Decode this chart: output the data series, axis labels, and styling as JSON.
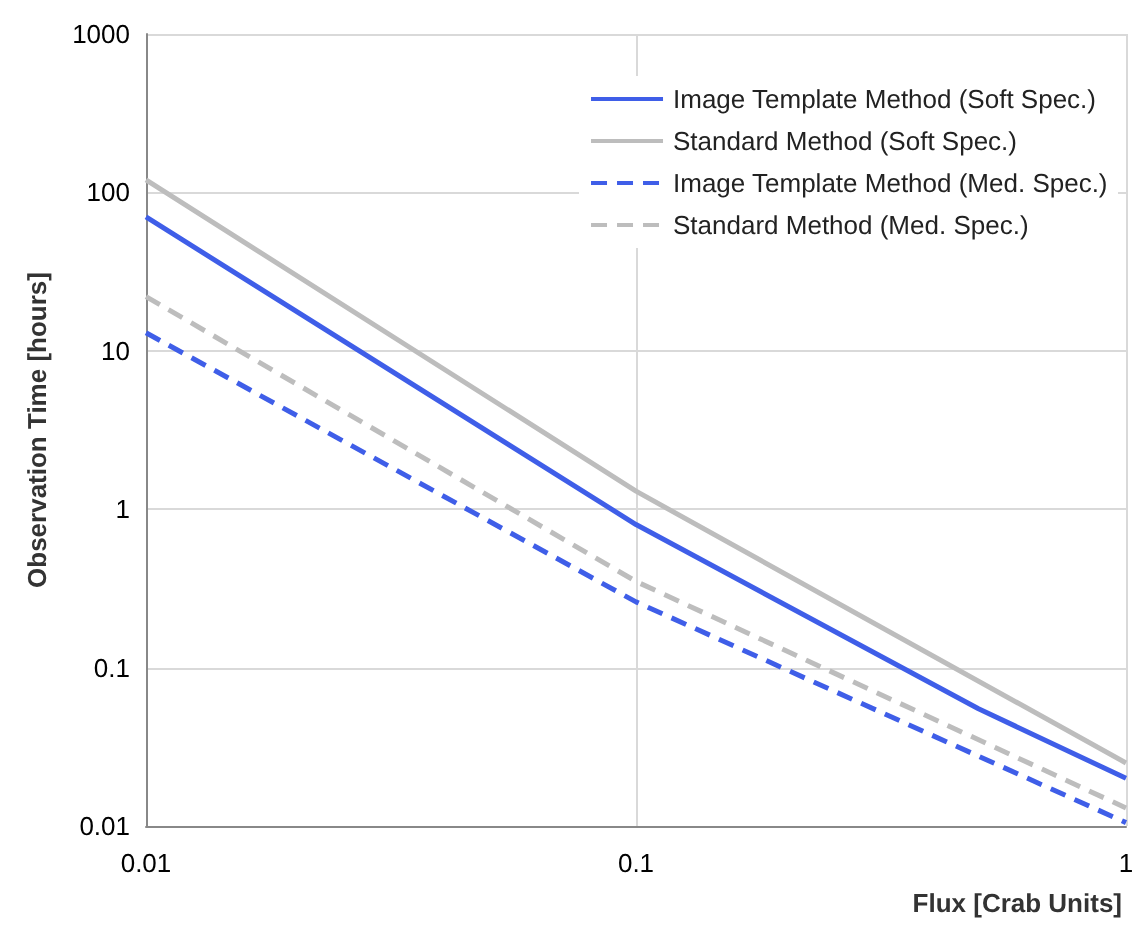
{
  "chart_data": {
    "type": "line",
    "xlabel": "Flux [Crab Units]",
    "ylabel": "Observation Time [hours]",
    "log": "xy",
    "grid": true,
    "legend": "top right",
    "marker": "none",
    "xlim": [
      0.01,
      1
    ],
    "xticks": [
      0.01,
      0.1,
      1
    ],
    "ylim": [
      0.01,
      1000
    ],
    "yticks": [
      0.01,
      0.1,
      1,
      10,
      100,
      1000
    ],
    "series": [
      {
        "name": "Image Template Method (Soft Spec.)",
        "color": "#3f5ee8",
        "line_style": "solid",
        "x": [
          0.01,
          0.1,
          0.5,
          1
        ],
        "values": [
          70,
          0.8,
          0.055,
          0.02
        ]
      },
      {
        "name": "Standard Method (Soft Spec.)",
        "color": "#bdbdbd",
        "line_style": "solid",
        "x": [
          0.01,
          0.1,
          1
        ],
        "values": [
          120,
          1.3,
          0.025
        ]
      },
      {
        "name": "Image Template Method (Med. Spec.)",
        "color": "#3f5ee8",
        "line_style": "dashed",
        "x": [
          0.01,
          0.1,
          1
        ],
        "values": [
          13,
          0.26,
          0.0105
        ]
      },
      {
        "name": "Standard Method (Med. Spec.)",
        "color": "#bdbdbd",
        "line_style": "dashed",
        "x": [
          0.01,
          0.1,
          1
        ],
        "values": [
          22,
          0.35,
          0.013
        ]
      }
    ]
  }
}
